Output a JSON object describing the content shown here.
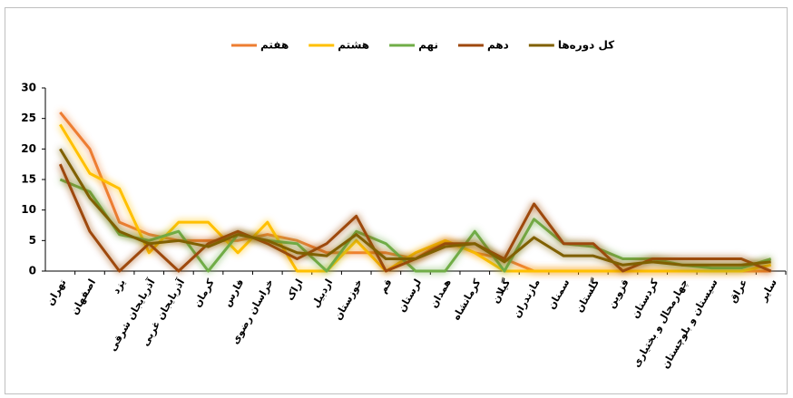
{
  "chart_data": {
    "type": "line",
    "categories": [
      "تهران",
      "اصفهان",
      "یزد",
      "آذربایجان شرقی",
      "آذربایجان غربی",
      "کرمان",
      "فارس",
      "خراسان رضوی",
      "اراک",
      "اردبیل",
      "خوزستان",
      "قم",
      "لرستان",
      "همدان",
      "کرمانشاه",
      "گیلان",
      "مازندران",
      "سمنان",
      "گلستان",
      "قزوین",
      "کردستان",
      "چهارمحال و بختیاری",
      "سیستان و بلوچستان",
      "عراق",
      "سایر"
    ],
    "series": [
      {
        "name": "هفتم",
        "color": "#ed7d31",
        "values": [
          26,
          20,
          8,
          6,
          5,
          5,
          5,
          6,
          5,
          3,
          3,
          3,
          2,
          5,
          3,
          2,
          0,
          0,
          0,
          0,
          0,
          0,
          0,
          0,
          0
        ]
      },
      {
        "name": "هشتم",
        "color": "#ffc000",
        "values": [
          24,
          16,
          13.5,
          3,
          8,
          8,
          3,
          8,
          0,
          0,
          5,
          0,
          3,
          5,
          3,
          0,
          0,
          0,
          0,
          0,
          0,
          0,
          0,
          0,
          1
        ]
      },
      {
        "name": "نهم",
        "color": "#70ad47",
        "values": [
          15,
          13,
          6,
          5,
          6.5,
          0,
          6,
          5,
          4.5,
          0,
          6.5,
          4.5,
          0,
          0,
          6.5,
          0,
          8.5,
          4.5,
          4,
          2,
          2,
          1,
          0.5,
          0.5,
          2
        ]
      },
      {
        "name": "دهم",
        "color": "#9e480e",
        "values": [
          17.5,
          6.5,
          0,
          4.5,
          0,
          4.5,
          6.5,
          4.5,
          2,
          4.5,
          9,
          0,
          2,
          4.5,
          4.5,
          2,
          11,
          4.5,
          4.5,
          0,
          2,
          2,
          2,
          2,
          0
        ]
      },
      {
        "name": "کل دوره‌ها",
        "color": "#806000",
        "values": [
          20,
          12,
          6.5,
          4.5,
          5,
          4,
          6,
          5,
          3,
          2.5,
          6,
          2,
          2,
          4,
          4.5,
          1.5,
          5.5,
          2.5,
          2.5,
          1,
          1.5,
          1,
          1,
          1,
          1.5
        ]
      }
    ],
    "ylim": [
      0,
      30
    ],
    "yticks": [
      0,
      5,
      10,
      15,
      20,
      25,
      30
    ],
    "grid": false,
    "legend": "top"
  }
}
